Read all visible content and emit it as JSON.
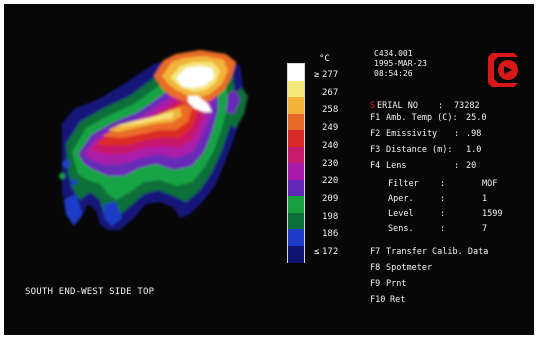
{
  "image_caption": "SOUTH END-WEST SIDE TOP",
  "scale": {
    "unit": "°C",
    "ticks": [
      {
        "marker": "≥",
        "value": "277"
      },
      {
        "marker": "",
        "value": "267"
      },
      {
        "marker": "",
        "value": "258"
      },
      {
        "marker": "",
        "value": "249"
      },
      {
        "marker": "",
        "value": "240"
      },
      {
        "marker": "",
        "value": "230"
      },
      {
        "marker": "",
        "value": "220"
      },
      {
        "marker": "",
        "value": "209"
      },
      {
        "marker": "",
        "value": "198"
      },
      {
        "marker": "",
        "value": "186"
      },
      {
        "marker": "≤",
        "value": "172"
      }
    ],
    "colors": [
      "#ffffff",
      "#f4e878",
      "#f0b438",
      "#e86a28",
      "#d82828",
      "#c81a6a",
      "#a81aa8",
      "#6428b8",
      "#18a040",
      "#0c6e3a",
      "#1e3cc8",
      "#101470"
    ]
  },
  "header": {
    "file_id": "C434.001",
    "date": "1995-MAR-23",
    "time": "08:54:26"
  },
  "menu": {
    "serial": {
      "first": "S",
      "rest": "ERIAL NO",
      "sep": ":",
      "value": "73282"
    },
    "items": [
      {
        "key": "F1",
        "label": "Amb. Temp (C):",
        "value": "25.0"
      },
      {
        "key": "F2",
        "label": "Emissivity",
        "sep": ":",
        "value": ".98"
      },
      {
        "key": "F3",
        "label": "Distance (m):",
        "value": "1.0"
      },
      {
        "key": "F4",
        "label": "Lens",
        "sep": ":",
        "value": "20"
      }
    ],
    "sub_items": [
      {
        "label": "Filter",
        "sep": ":",
        "value": "MOF"
      },
      {
        "label": "Aper.",
        "sep": ":",
        "value": "1"
      },
      {
        "label": "Level",
        "sep": ":",
        "value": "1599"
      },
      {
        "label": "Sens.",
        "sep": ":",
        "value": "7"
      }
    ],
    "functions": [
      {
        "key": "F7",
        "label": "Transfer Calib. Data"
      },
      {
        "key": "F8",
        "label": "Spotmeter"
      },
      {
        "key": "F9",
        "label": "Prnt"
      },
      {
        "key": "F10",
        "label": "Ret"
      }
    ]
  },
  "accent_red": "#d81818"
}
